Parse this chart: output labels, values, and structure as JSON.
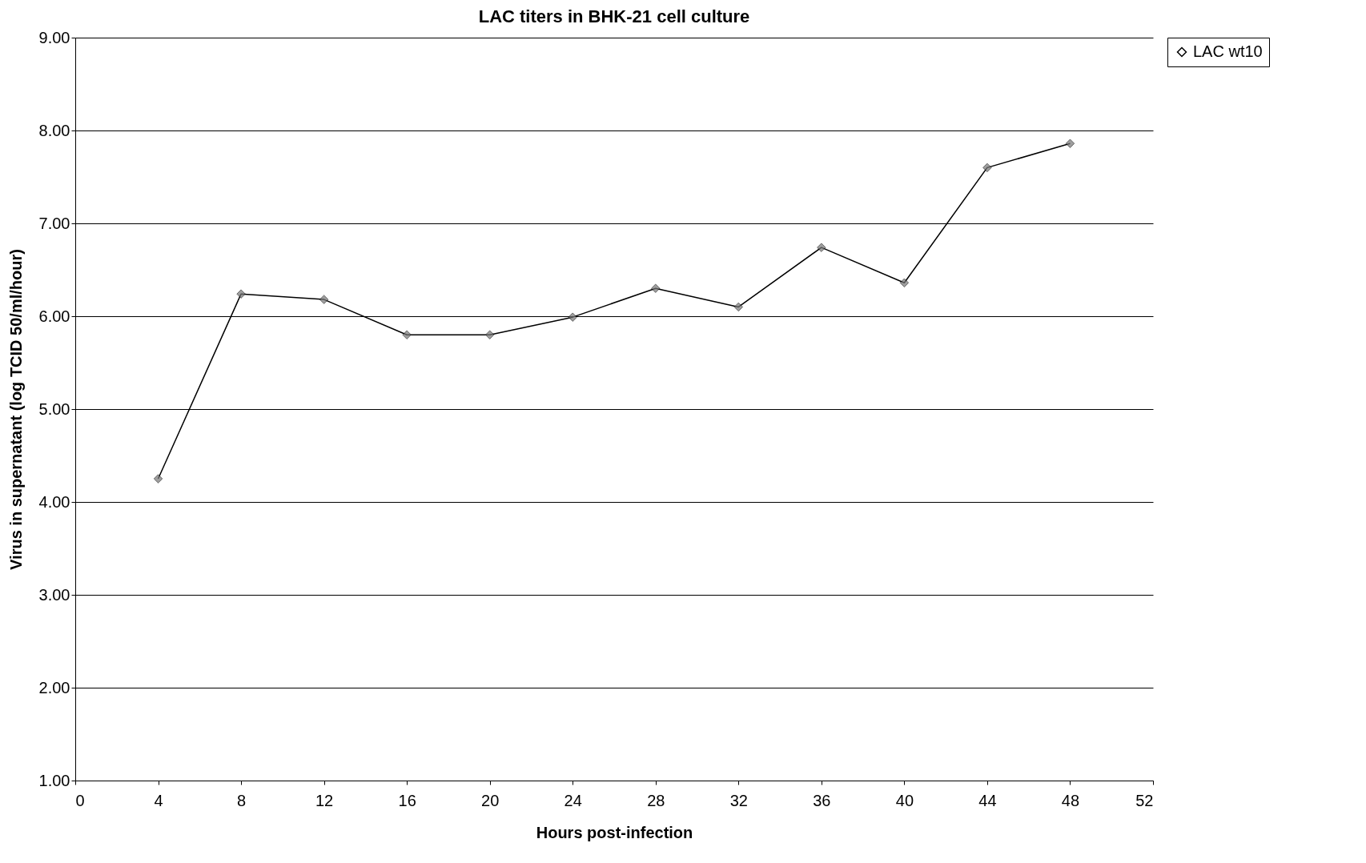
{
  "chart_data": {
    "type": "line",
    "title": "LAC titers in BHK-21 cell culture",
    "xlabel": "Hours post-infection",
    "ylabel": "Virus in supernatant (log TCID 50/ml/hour)",
    "x": [
      4,
      8,
      12,
      16,
      20,
      24,
      28,
      32,
      36,
      40,
      44,
      48
    ],
    "series": [
      {
        "name": "LAC wt10",
        "color": "#000000",
        "values": [
          4.25,
          6.24,
          6.18,
          5.8,
          5.8,
          5.99,
          6.3,
          6.1,
          6.74,
          6.36,
          7.6,
          7.86
        ]
      }
    ],
    "xlim": [
      0,
      52
    ],
    "xticks": [
      0,
      4,
      8,
      12,
      16,
      20,
      24,
      28,
      32,
      36,
      40,
      44,
      48,
      52
    ],
    "ylim": [
      1,
      9
    ],
    "yticks": [
      {
        "value": 1,
        "label": "1.00"
      },
      {
        "value": 2,
        "label": "2.00"
      },
      {
        "value": 3,
        "label": "3.00"
      },
      {
        "value": 4,
        "label": "4.00"
      },
      {
        "value": 5,
        "label": "5.00"
      },
      {
        "value": 6,
        "label": "6.00"
      },
      {
        "value": 7,
        "label": "7.00"
      },
      {
        "value": 8,
        "label": "8.00"
      },
      {
        "value": 9,
        "label": "9.00"
      }
    ],
    "grid": "y",
    "legend": "right",
    "marker": "diamond",
    "line_style": "solid"
  }
}
